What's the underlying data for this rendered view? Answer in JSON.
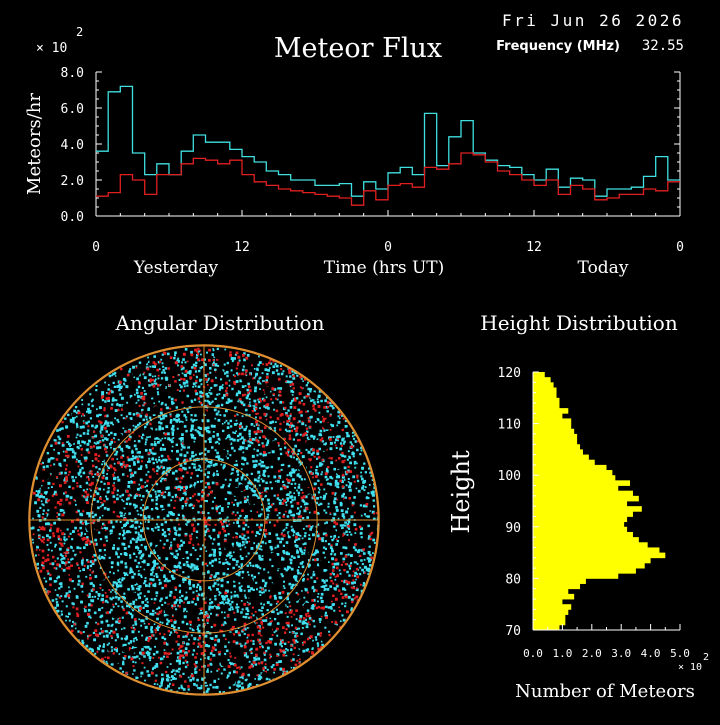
{
  "header": {
    "date": "Fri Jun 26 2026",
    "frequency_label": "Frequency (MHz)",
    "frequency_value": "32.55"
  },
  "chart_data": [
    {
      "type": "line",
      "title": "Meteor Flux",
      "ylabel": "Meteors/hr",
      "xlabel": "Time (hrs UT)",
      "scale_exponent_label": "× 10",
      "scale_exponent": "2",
      "ylim": [
        0,
        8
      ],
      "yticks": [
        "0.0",
        "2.0",
        "4.0",
        "6.0",
        "8.0"
      ],
      "xlim": [
        0,
        48
      ],
      "xticks": [
        {
          "x": 0,
          "label": "0"
        },
        {
          "x": 12,
          "label": "12"
        },
        {
          "x": 24,
          "label": "0"
        },
        {
          "x": 36,
          "label": "12"
        },
        {
          "x": 48,
          "label": "0"
        }
      ],
      "day_labels": [
        "Yesterday",
        "Today"
      ],
      "step": true,
      "series": [
        {
          "color": "#40e0e0",
          "values": [
            3.6,
            6.9,
            7.2,
            3.5,
            2.3,
            2.9,
            2.3,
            3.6,
            4.5,
            4.1,
            4.1,
            3.7,
            3.3,
            3.0,
            2.5,
            2.3,
            2.0,
            2.0,
            1.7,
            1.7,
            1.8,
            1.1,
            1.9,
            1.5,
            2.4,
            2.7,
            2.3,
            5.7,
            2.8,
            4.4,
            5.3,
            3.5,
            3.1,
            2.8,
            2.7,
            2.3,
            2.0,
            2.6,
            1.6,
            2.1,
            2.0,
            1.1,
            1.5,
            1.5,
            1.6,
            2.2,
            3.3,
            2.0
          ]
        },
        {
          "color": "#e02020",
          "values": [
            1.1,
            1.3,
            2.3,
            2.0,
            1.2,
            2.3,
            2.3,
            2.9,
            3.2,
            3.1,
            2.9,
            3.1,
            2.3,
            1.9,
            1.7,
            1.5,
            1.4,
            1.3,
            1.2,
            1.1,
            1.0,
            0.6,
            1.4,
            0.9,
            1.7,
            1.8,
            1.6,
            2.7,
            2.6,
            2.9,
            3.5,
            3.4,
            3.0,
            2.5,
            2.3,
            2.0,
            1.7,
            2.0,
            1.2,
            1.7,
            1.5,
            0.9,
            1.0,
            1.2,
            1.2,
            1.5,
            1.4,
            1.9
          ]
        }
      ]
    },
    {
      "type": "scatter",
      "title": "Angular Distribution",
      "projection": "polar sky map",
      "point_colors": [
        "#40e0f0",
        "#e02020"
      ],
      "grid_color": "#e09030"
    },
    {
      "type": "bar",
      "orientation": "horizontal",
      "title": "Height Distribution",
      "ylabel": "Height",
      "xlabel": "Number of Meteors",
      "scale_exponent_label": "× 10",
      "scale_exponent": "2",
      "ylim": [
        70,
        120
      ],
      "yticks": [
        "70",
        "80",
        "90",
        "100",
        "110",
        "120"
      ],
      "xlim": [
        0,
        5
      ],
      "xticks": [
        "0.0",
        "1.0",
        "2.0",
        "3.0",
        "4.0",
        "5.0"
      ],
      "bar_color": "#ffff00",
      "heights": [
        70,
        71,
        72,
        73,
        74,
        75,
        76,
        77,
        78,
        79,
        80,
        81,
        82,
        83,
        84,
        85,
        86,
        87,
        88,
        89,
        90,
        91,
        92,
        93,
        94,
        95,
        96,
        97,
        98,
        99,
        100,
        101,
        102,
        103,
        104,
        105,
        106,
        107,
        108,
        109,
        110,
        111,
        112,
        113,
        114,
        115,
        116,
        117,
        118,
        119
      ],
      "values": [
        0.9,
        1.1,
        1.1,
        1.2,
        1.3,
        1.0,
        1.4,
        1.2,
        1.6,
        1.8,
        2.9,
        3.5,
        3.8,
        4.0,
        4.5,
        4.3,
        3.9,
        3.6,
        3.4,
        3.2,
        3.1,
        3.2,
        3.4,
        3.7,
        3.2,
        3.6,
        3.4,
        2.9,
        3.3,
        2.8,
        2.7,
        2.5,
        2.1,
        1.9,
        1.7,
        1.6,
        1.5,
        1.5,
        1.4,
        1.3,
        1.3,
        1.0,
        1.2,
        0.9,
        0.9,
        0.8,
        0.8,
        0.7,
        0.6,
        0.4
      ]
    }
  ]
}
